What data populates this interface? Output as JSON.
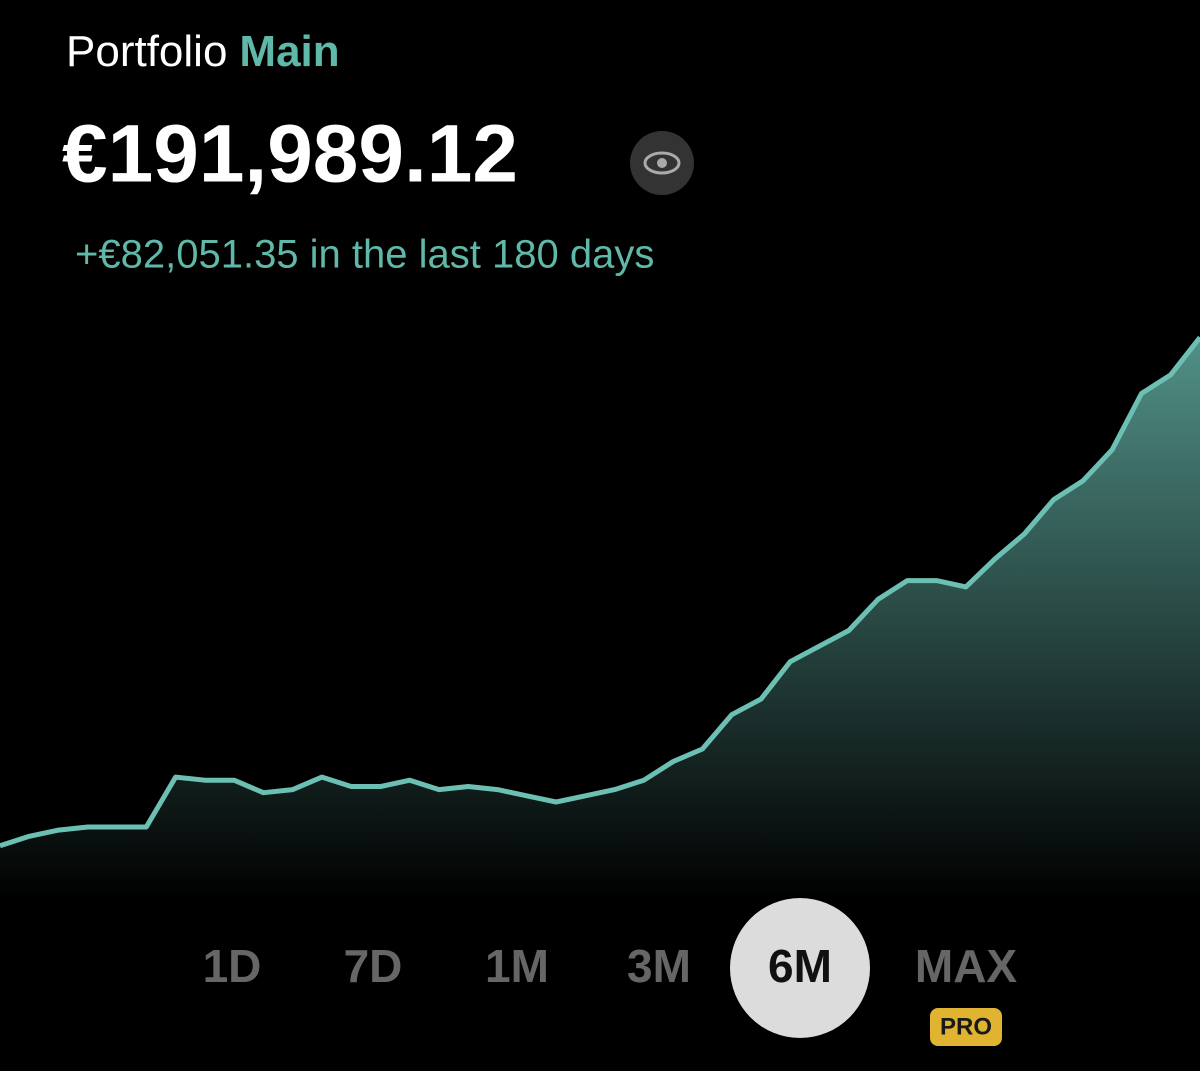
{
  "header": {
    "title_prefix": "Portfolio",
    "title_name": "Main",
    "balance": "€191,989.12",
    "change": "+€82,051.35 in the last 180 days"
  },
  "chart_data": {
    "type": "area",
    "color": "#6cc0b3",
    "values": [
      110500,
      112000,
      113000,
      113500,
      113500,
      113500,
      121500,
      121000,
      121000,
      119000,
      119500,
      121500,
      120000,
      120000,
      121000,
      119500,
      120000,
      119500,
      118500,
      117500,
      118500,
      119500,
      121000,
      124000,
      126000,
      131500,
      134000,
      140000,
      142500,
      145000,
      150000,
      153000,
      153000,
      152000,
      156500,
      160500,
      166000,
      169000,
      174000,
      183000,
      186000,
      192000
    ],
    "ylim": [
      105000,
      198000
    ]
  },
  "ranges": {
    "options": [
      "1D",
      "7D",
      "1M",
      "3M",
      "6M",
      "MAX"
    ],
    "selected_index": 4,
    "badge": "PRO",
    "badge_index": 5
  }
}
